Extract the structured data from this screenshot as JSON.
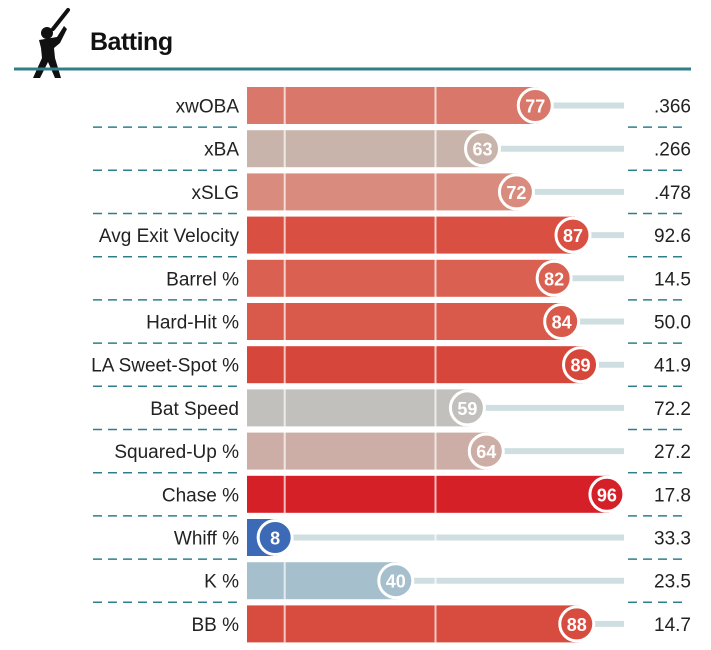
{
  "header": {
    "title": "Batting",
    "icon": "batter-silhouette-icon"
  },
  "colors": {
    "rule": "#2f7f8a",
    "track": "#cfdfe1",
    "label": "#222222",
    "marker_text": "#ffffff"
  },
  "chart_data": {
    "type": "bar",
    "title": "Batting",
    "orientation": "horizontal",
    "xlim": [
      0,
      100
    ],
    "reference_lines": [
      10,
      50
    ],
    "categories": [
      "xwOBA",
      "xBA",
      "xSLG",
      "Avg Exit Velocity",
      "Barrel %",
      "Hard-Hit %",
      "LA Sweet-Spot %",
      "Bat Speed",
      "Squared-Up %",
      "Chase %",
      "Whiff %",
      "K %",
      "BB %"
    ],
    "percentiles": [
      77,
      63,
      72,
      87,
      82,
      84,
      89,
      59,
      64,
      96,
      8,
      40,
      88
    ],
    "stat_values": [
      ".366",
      ".266",
      ".478",
      "92.6",
      "14.5",
      "50.0",
      "41.9",
      "72.2",
      "27.2",
      "17.8",
      "33.3",
      "23.5",
      "14.7"
    ],
    "bar_colors": [
      "#d9786a",
      "#c9b4ab",
      "#d98c7e",
      "#d94f42",
      "#da6152",
      "#d95a4b",
      "#d7463a",
      "#c2c0bc",
      "#cdaea6",
      "#d62027",
      "#3d6ab7",
      "#a5bfcc",
      "#d74c3f"
    ]
  }
}
